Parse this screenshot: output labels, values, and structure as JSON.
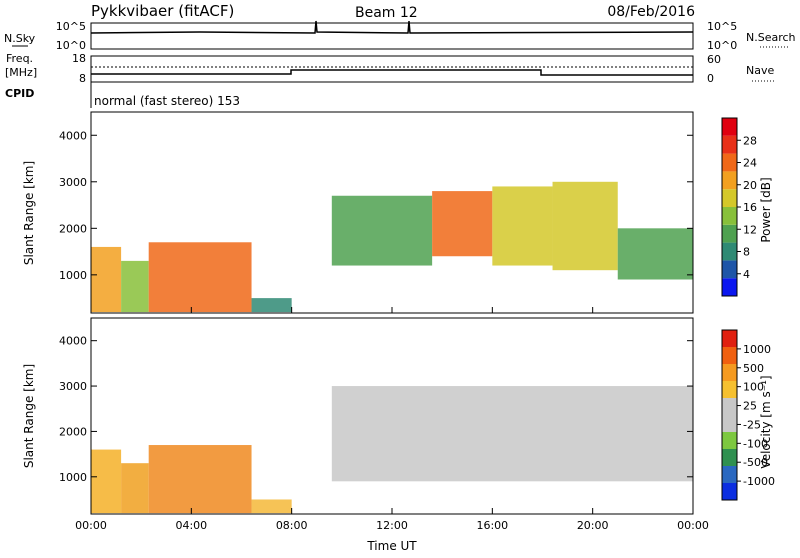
{
  "header": {
    "station": "Pykkvibaer (fitACF)",
    "beam": "Beam 12",
    "date": "08/Feb/2016"
  },
  "noise_panel": {
    "left_label": "N.Sky",
    "right_label": "N.Search",
    "left_ticks": [
      "10^5",
      "10^0"
    ],
    "right_ticks": [
      "10^5",
      "10^0"
    ]
  },
  "freq_panel": {
    "left_label_1": "Freq.",
    "left_label_2": "[MHz]",
    "right_label": "Nave",
    "left_ticks": [
      "18",
      "8"
    ],
    "right_ticks": [
      "60",
      "0"
    ]
  },
  "cpid": {
    "label": "CPID",
    "text": "normal (fast stereo) 153"
  },
  "chart_data": [
    {
      "type": "heatmap",
      "name": "power",
      "ylabel": "Slant Range [km]",
      "xlabel": "",
      "y_ticks": [
        "1000",
        "2000",
        "3000",
        "4000"
      ],
      "ylim": [
        180,
        4500
      ],
      "xlim": [
        0,
        24
      ],
      "colorbar_label": "Power [dB]",
      "colorbar_ticks": [
        "4",
        "8",
        "12",
        "16",
        "20",
        "24",
        "28"
      ],
      "colorbar_colors": [
        "#0b17ef",
        "#1e55a8",
        "#2f8a74",
        "#4fa150",
        "#88c03a",
        "#d4c82a",
        "#f2a020",
        "#f06818",
        "#e83018",
        "#e00010"
      ],
      "echo_regions": [
        {
          "t0": 0.0,
          "t1": 1.2,
          "r0": 200,
          "r1": 1600,
          "level": 20
        },
        {
          "t0": 1.2,
          "t1": 2.3,
          "r0": 200,
          "r1": 1300,
          "level": 14
        },
        {
          "t0": 2.3,
          "t1": 6.4,
          "r0": 200,
          "r1": 1700,
          "level": 22
        },
        {
          "t0": 6.4,
          "t1": 8.0,
          "r0": 200,
          "r1": 500,
          "level": 8
        },
        {
          "t0": 9.6,
          "t1": 13.6,
          "r0": 1200,
          "r1": 2700,
          "level": 10
        },
        {
          "t0": 13.6,
          "t1": 16.0,
          "r0": 1400,
          "r1": 2800,
          "level": 22
        },
        {
          "t0": 16.0,
          "t1": 18.4,
          "r0": 1200,
          "r1": 2900,
          "level": 18
        },
        {
          "t0": 18.4,
          "t1": 21.0,
          "r0": 1100,
          "r1": 3000,
          "level": 16
        },
        {
          "t0": 21.0,
          "t1": 24.0,
          "r0": 900,
          "r1": 2000,
          "level": 10
        }
      ]
    },
    {
      "type": "heatmap",
      "name": "velocity",
      "ylabel": "Slant Range [km]",
      "xlabel": "Time UT",
      "x_ticks": [
        "00:00",
        "04:00",
        "08:00",
        "12:00",
        "16:00",
        "20:00",
        "00:00"
      ],
      "y_ticks": [
        "1000",
        "2000",
        "3000",
        "4000"
      ],
      "ylim": [
        180,
        4500
      ],
      "xlim": [
        0,
        24
      ],
      "colorbar_label": "Velocity [m s⁻¹]",
      "colorbar_ticks": [
        "1000",
        "500",
        "100",
        "25",
        "-25",
        "-100",
        "-500",
        "-1000"
      ],
      "colorbar_colors": [
        "#0b2ee0",
        "#2a68c0",
        "#2f9050",
        "#7dc840",
        "#c8c8c8",
        "#c8c8c8",
        "#f5c030",
        "#f59a20",
        "#f06010",
        "#e02010"
      ],
      "echo_regions": [
        {
          "t0": 0.0,
          "t1": 1.2,
          "r0": 200,
          "r1": 1600,
          "color": "#f5b028"
        },
        {
          "t0": 1.2,
          "t1": 2.3,
          "r0": 200,
          "r1": 1300,
          "color": "#f0a020"
        },
        {
          "t0": 2.3,
          "t1": 6.4,
          "r0": 200,
          "r1": 1700,
          "color": "#f08a20"
        },
        {
          "t0": 6.4,
          "t1": 8.0,
          "r0": 200,
          "r1": 500,
          "color": "#f5b838"
        },
        {
          "t0": 9.6,
          "t1": 24.0,
          "r0": 900,
          "r1": 3000,
          "color": "#c8c8c8"
        }
      ]
    }
  ]
}
